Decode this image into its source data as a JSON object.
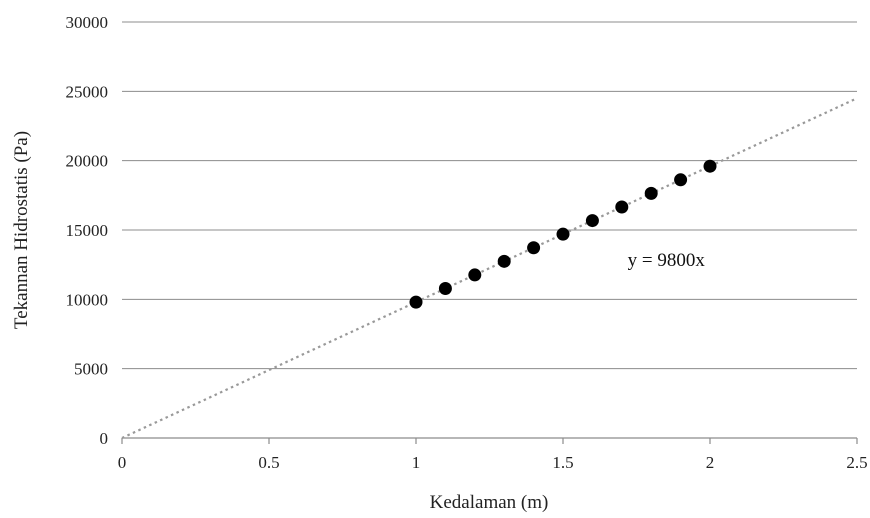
{
  "chart_data": {
    "type": "scatter",
    "title": "",
    "xlabel": "Kedalaman (m)",
    "ylabel": "Tekannan Hidrostatis (Pa)",
    "xlim": [
      0,
      2.5
    ],
    "ylim": [
      0,
      30000
    ],
    "x_ticks": [
      "0",
      "0.5",
      "1",
      "1.5",
      "2",
      "2.5"
    ],
    "y_ticks": [
      "0",
      "5000",
      "10000",
      "15000",
      "20000",
      "25000",
      "30000"
    ],
    "grid": "horizontal",
    "series": [
      {
        "values": [
          {
            "x": 1.0,
            "y": 9800
          },
          {
            "x": 1.1,
            "y": 10780
          },
          {
            "x": 1.2,
            "y": 11760
          },
          {
            "x": 1.3,
            "y": 12740
          },
          {
            "x": 1.4,
            "y": 13720
          },
          {
            "x": 1.5,
            "y": 14700
          },
          {
            "x": 1.6,
            "y": 15680
          },
          {
            "x": 1.7,
            "y": 16660
          },
          {
            "x": 1.8,
            "y": 17640
          },
          {
            "x": 1.9,
            "y": 18620
          },
          {
            "x": 2.0,
            "y": 19600
          }
        ],
        "color": "#000000"
      }
    ],
    "trendline": {
      "type": "linear",
      "slope": 9800,
      "intercept": 0,
      "x_range": [
        0,
        2.5
      ],
      "color": "#999999",
      "style": "dotted"
    },
    "annotations": [
      {
        "text": "y = 9800x",
        "x": 1.72,
        "y": 12400
      }
    ]
  }
}
